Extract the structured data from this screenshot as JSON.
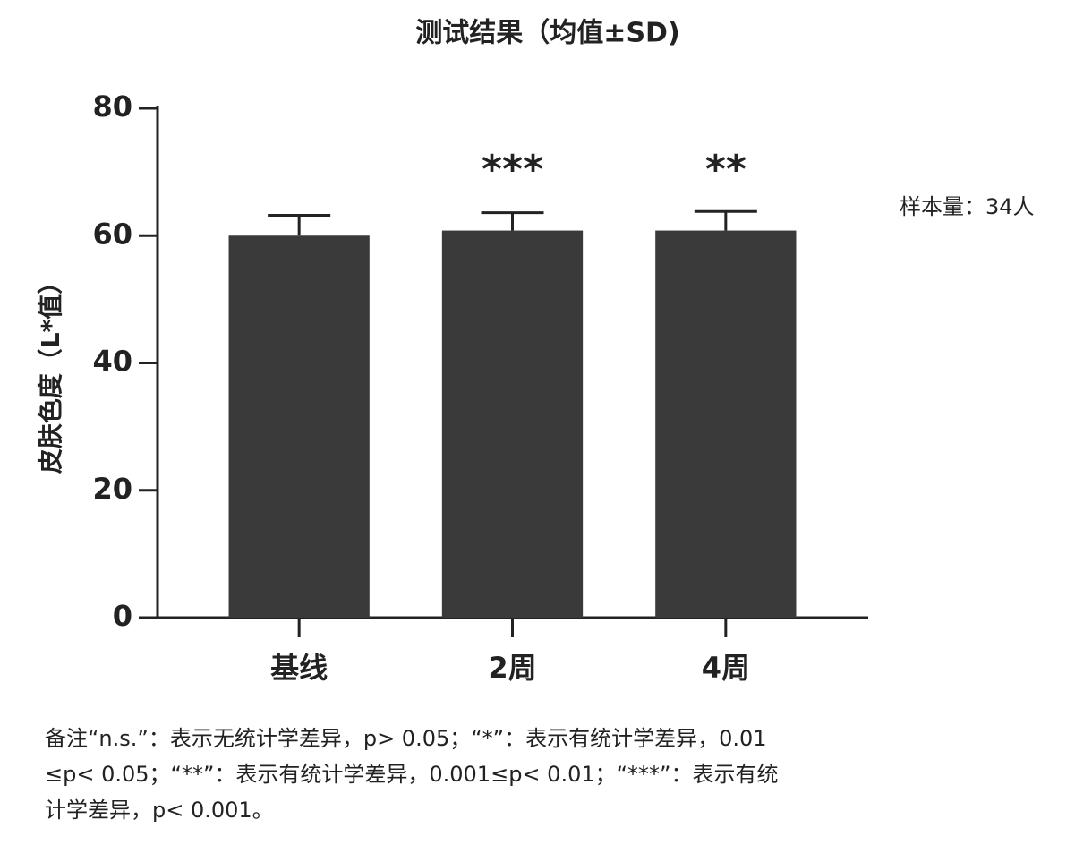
{
  "chart_data": {
    "type": "bar",
    "title": "测试结果（均值±SD)",
    "y_label": "皮肤色度（L*值）",
    "categories": [
      "基线",
      "2周",
      "4周"
    ],
    "values": [
      60,
      60.8,
      60.8
    ],
    "errors": [
      3.2,
      2.8,
      3.0
    ],
    "significance": [
      null,
      "***",
      "**"
    ],
    "color": "#3a3a3a",
    "ylim": [
      0,
      80
    ],
    "yticks": [
      0,
      20,
      40,
      60,
      80
    ],
    "grid": false,
    "annotation": "样本量：34人",
    "footnote": [
      "备注“n.s.”：表示无统计学差异，p> 0.05；“*”：表示有统计学差异，0.01",
      "≤p< 0.05；“**”：表示有统计学差异，0.001≤p< 0.01；“***”：表示有统",
      "计学差异，p< 0.001。"
    ]
  }
}
